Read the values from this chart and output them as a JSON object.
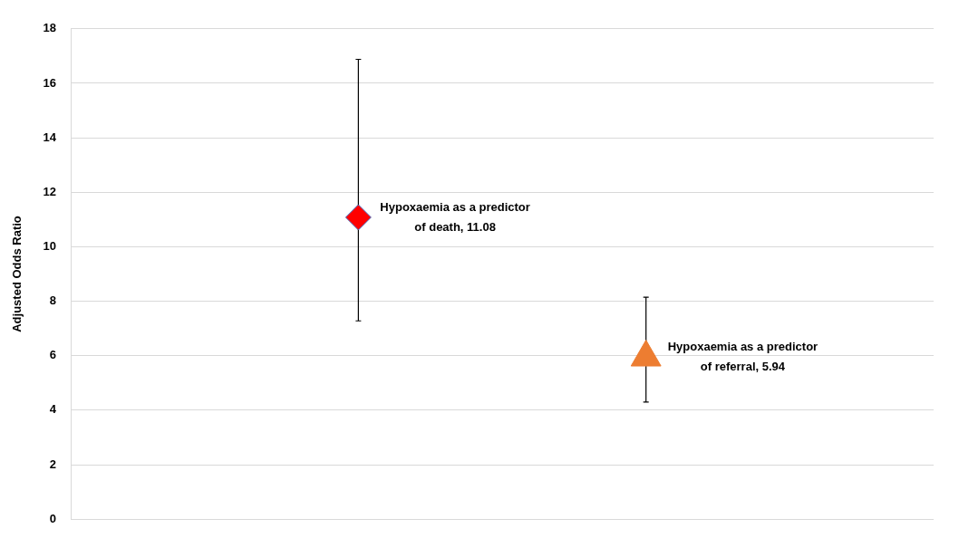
{
  "chart_data": {
    "type": "scatter",
    "ylabel": "Adjusted Odds Ratio",
    "categories": [
      null,
      null,
      null,
      null
    ],
    "ylim": [
      0,
      18
    ],
    "yticks": [
      0,
      2,
      4,
      6,
      8,
      10,
      12,
      14,
      16,
      18
    ],
    "grid": "y",
    "tick_labels": "y",
    "legend": false,
    "series": [
      {
        "color": "#ff0000",
        "marker": "diamond",
        "values": [
          null,
          11.08,
          null,
          null
        ],
        "value_labels": [
          null,
          "Hypoxaemia as a predictor of death, 11.08",
          null,
          null
        ],
        "errors": [
          null,
          [
            7.28,
            16.88
          ],
          null,
          null
        ]
      },
      {
        "color": "#ed7d31",
        "marker": "triangle",
        "values": [
          null,
          null,
          5.94,
          null
        ],
        "value_labels": [
          null,
          null,
          "Hypoxaemia as a predictor of referral, 5.94",
          null
        ],
        "errors": [
          null,
          null,
          [
            4.3,
            8.15
          ],
          null
        ]
      }
    ]
  }
}
